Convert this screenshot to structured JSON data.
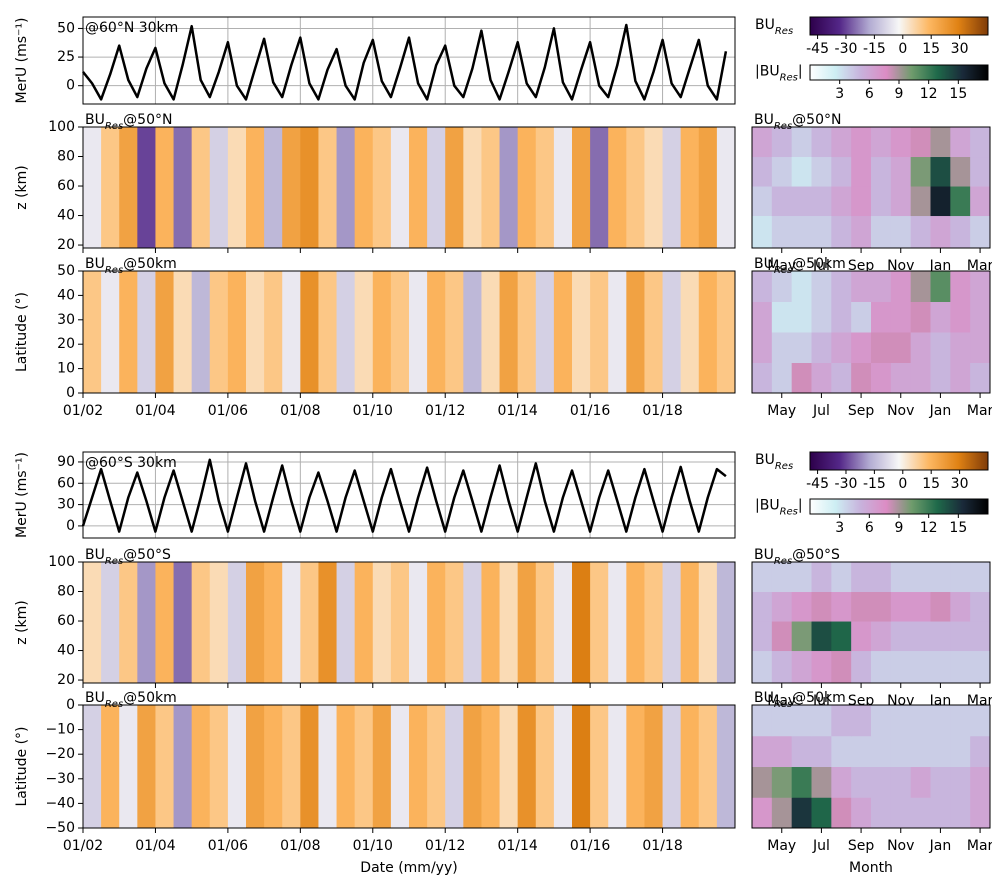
{
  "chart_data": [
    {
      "type": "line",
      "annotation": "@60°N 30km",
      "ylabel": "MerU (ms⁻¹)",
      "grid": true,
      "color": "#000000",
      "xlim": [
        2002,
        2020
      ],
      "ylim": [
        -16,
        60
      ],
      "yticks": [
        0,
        25,
        50
      ],
      "x": [
        2002,
        2002.25,
        2002.5,
        2002.75,
        2003,
        2003.25,
        2003.5,
        2003.75,
        2004,
        2004.25,
        2004.5,
        2004.75,
        2005,
        2005.25,
        2005.5,
        2005.75,
        2006,
        2006.25,
        2006.5,
        2006.75,
        2007,
        2007.25,
        2007.5,
        2007.75,
        2008,
        2008.25,
        2008.5,
        2008.75,
        2009,
        2009.25,
        2009.5,
        2009.75,
        2010,
        2010.25,
        2010.5,
        2010.75,
        2011,
        2011.25,
        2011.5,
        2011.75,
        2012,
        2012.25,
        2012.5,
        2012.75,
        2013,
        2013.25,
        2013.5,
        2013.75,
        2014,
        2014.25,
        2014.5,
        2014.75,
        2015,
        2015.25,
        2015.5,
        2015.75,
        2016,
        2016.25,
        2016.5,
        2016.75,
        2017,
        2017.25,
        2017.5,
        2017.75,
        2018,
        2018.25,
        2018.5,
        2018.75,
        2019,
        2019.25,
        2019.5,
        2019.75
      ],
      "values": [
        12,
        2,
        -12,
        10,
        35,
        5,
        -10,
        15,
        33,
        2,
        -12,
        18,
        52,
        5,
        -10,
        12,
        38,
        0,
        -12,
        15,
        41,
        3,
        -10,
        18,
        42,
        2,
        -12,
        14,
        32,
        0,
        -12,
        20,
        40,
        4,
        -10,
        15,
        42,
        2,
        -12,
        18,
        35,
        0,
        -10,
        15,
        48,
        5,
        -12,
        12,
        38,
        2,
        -10,
        16,
        50,
        3,
        -12,
        14,
        38,
        0,
        -10,
        18,
        53,
        4,
        -12,
        12,
        40,
        2,
        -10,
        15,
        40,
        0,
        -12,
        30
      ]
    },
    {
      "type": "heatmap",
      "annotation": {
        "base": "BU",
        "sub": "Res",
        "at": "@50°N"
      },
      "ylabel": "z (km)",
      "xlim": [
        2002,
        2020
      ],
      "ylim": [
        18,
        100
      ],
      "yticks": [
        20,
        40,
        60,
        80,
        100
      ],
      "xbins": [
        2002,
        2002.5,
        2003,
        2003.5,
        2004,
        2004.5,
        2005,
        2005.5,
        2006,
        2006.5,
        2007,
        2007.5,
        2008,
        2008.5,
        2009,
        2009.5,
        2010,
        2010.5,
        2011,
        2011.5,
        2012,
        2012.5,
        2013,
        2013.5,
        2014,
        2014.5,
        2015,
        2015.5,
        2016,
        2016.5,
        2017,
        2017.5,
        2018,
        2018.5,
        2019,
        2019.5,
        2020
      ],
      "values": [
        -5,
        10,
        20,
        -30,
        15,
        -25,
        10,
        -10,
        5,
        15,
        -15,
        20,
        25,
        10,
        -20,
        15,
        10,
        -5,
        15,
        -10,
        20,
        5,
        10,
        -20,
        15,
        10,
        -5,
        20,
        -25,
        15,
        10,
        5,
        -10,
        15,
        20,
        -5
      ]
    },
    {
      "type": "heatmap",
      "annotation": {
        "base": "BU",
        "sub": "Res",
        "at": "@50km"
      },
      "ylabel": "Latitude (°)",
      "xlim": [
        2002,
        2020
      ],
      "ylim": [
        0,
        50
      ],
      "yticks": [
        0,
        10,
        20,
        30,
        40,
        50
      ],
      "xticks": [
        {
          "value": 2002,
          "label": "01/02"
        },
        {
          "value": 2004,
          "label": "01/04"
        },
        {
          "value": 2006,
          "label": "01/06"
        },
        {
          "value": 2008,
          "label": "01/08"
        },
        {
          "value": 2010,
          "label": "01/10"
        },
        {
          "value": 2012,
          "label": "01/12"
        },
        {
          "value": 2014,
          "label": "01/14"
        },
        {
          "value": 2016,
          "label": "01/16"
        },
        {
          "value": 2018,
          "label": "01/18"
        }
      ],
      "xbins": [
        2002,
        2002.5,
        2003,
        2003.5,
        2004,
        2004.5,
        2005,
        2005.5,
        2006,
        2006.5,
        2007,
        2007.5,
        2008,
        2008.5,
        2009,
        2009.5,
        2010,
        2010.5,
        2011,
        2011.5,
        2012,
        2012.5,
        2013,
        2013.5,
        2014,
        2014.5,
        2015,
        2015.5,
        2016,
        2016.5,
        2017,
        2017.5,
        2018,
        2018.5,
        2019,
        2019.5,
        2020
      ],
      "values": [
        10,
        -5,
        15,
        -10,
        20,
        5,
        -15,
        10,
        15,
        5,
        10,
        -5,
        25,
        10,
        -10,
        5,
        15,
        10,
        -5,
        15,
        10,
        -15,
        5,
        20,
        10,
        -10,
        15,
        5,
        10,
        -5,
        20,
        10,
        -10,
        5,
        15,
        10
      ]
    },
    {
      "type": "heatmap",
      "annotation": {
        "base": "BU",
        "sub": "Res",
        "at": "@50°N"
      },
      "categories": [
        null,
        "May",
        null,
        "Jul",
        null,
        "Sep",
        null,
        "Nov",
        null,
        "Jan",
        null,
        "Mar"
      ],
      "ylim": [
        18,
        100
      ],
      "ybins": [
        18,
        40,
        60,
        80,
        100
      ],
      "values": [
        [
          3,
          4,
          4,
          4,
          5,
          6,
          4,
          4,
          5,
          6,
          5,
          4
        ],
        [
          4,
          5,
          5,
          5,
          6,
          7,
          5,
          6,
          9,
          16,
          12,
          6
        ],
        [
          5,
          4,
          3,
          4,
          5,
          7,
          5,
          6,
          10,
          14,
          9,
          5
        ],
        [
          6,
          5,
          4,
          5,
          6,
          7,
          6,
          7,
          8,
          9,
          6,
          5
        ]
      ]
    },
    {
      "type": "heatmap",
      "annotation": {
        "base": "BU",
        "sub": "Res",
        "at": "@50km"
      },
      "categories": [
        null,
        "May",
        null,
        "Jul",
        null,
        "Sep",
        null,
        "Nov",
        null,
        "Jan",
        null,
        "Mar"
      ],
      "ylim": [
        0,
        50
      ],
      "ybins": [
        0,
        12.5,
        25,
        37.5,
        50
      ],
      "values": [
        [
          5,
          4,
          8,
          6,
          5,
          8,
          7,
          6,
          6,
          5,
          6,
          5
        ],
        [
          6,
          4,
          4,
          5,
          6,
          7,
          8,
          8,
          6,
          5,
          6,
          6
        ],
        [
          6,
          3,
          3,
          4,
          5,
          4,
          7,
          7,
          8,
          6,
          7,
          6
        ],
        [
          5,
          4,
          3,
          4,
          5,
          6,
          6,
          7,
          9,
          11,
          7,
          6
        ]
      ]
    },
    {
      "type": "line",
      "annotation": "@60°S 30km",
      "ylabel": "MerU (ms⁻¹)",
      "grid": true,
      "color": "#000000",
      "xlim": [
        2002,
        2020
      ],
      "ylim": [
        -17,
        104
      ],
      "yticks": [
        0,
        30,
        60,
        90
      ],
      "x": [
        2002,
        2002.25,
        2002.5,
        2002.75,
        2003,
        2003.25,
        2003.5,
        2003.75,
        2004,
        2004.25,
        2004.5,
        2004.75,
        2005,
        2005.25,
        2005.5,
        2005.75,
        2006,
        2006.25,
        2006.5,
        2006.75,
        2007,
        2007.25,
        2007.5,
        2007.75,
        2008,
        2008.25,
        2008.5,
        2008.75,
        2009,
        2009.25,
        2009.5,
        2009.75,
        2010,
        2010.25,
        2010.5,
        2010.75,
        2011,
        2011.25,
        2011.5,
        2011.75,
        2012,
        2012.25,
        2012.5,
        2012.75,
        2013,
        2013.25,
        2013.5,
        2013.75,
        2014,
        2014.25,
        2014.5,
        2014.75,
        2015,
        2015.25,
        2015.5,
        2015.75,
        2016,
        2016.25,
        2016.5,
        2016.75,
        2017,
        2017.25,
        2017.5,
        2017.75,
        2018,
        2018.25,
        2018.5,
        2018.75,
        2019,
        2019.25,
        2019.5,
        2019.75
      ],
      "values": [
        0,
        40,
        80,
        35,
        -8,
        40,
        75,
        35,
        -8,
        40,
        78,
        35,
        -8,
        40,
        93,
        35,
        -8,
        40,
        88,
        35,
        -8,
        40,
        85,
        35,
        -8,
        40,
        75,
        35,
        -8,
        40,
        78,
        35,
        -8,
        40,
        80,
        35,
        -8,
        40,
        82,
        35,
        -8,
        40,
        78,
        35,
        -8,
        40,
        85,
        35,
        -8,
        40,
        88,
        35,
        -8,
        40,
        78,
        35,
        -8,
        40,
        78,
        35,
        -8,
        40,
        80,
        35,
        -8,
        40,
        83,
        35,
        -8,
        40,
        80,
        70
      ]
    },
    {
      "type": "heatmap",
      "annotation": {
        "base": "BU",
        "sub": "Res",
        "at": "@50°S"
      },
      "ylabel": "z (km)",
      "xlim": [
        2002,
        2020
      ],
      "ylim": [
        18,
        100
      ],
      "yticks": [
        20,
        40,
        60,
        80,
        100
      ],
      "xbins": [
        2002,
        2002.5,
        2003,
        2003.5,
        2004,
        2004.5,
        2005,
        2005.5,
        2006,
        2006.5,
        2007,
        2007.5,
        2008,
        2008.5,
        2009,
        2009.5,
        2010,
        2010.5,
        2011,
        2011.5,
        2012,
        2012.5,
        2013,
        2013.5,
        2014,
        2014.5,
        2015,
        2015.5,
        2016,
        2016.5,
        2017,
        2017.5,
        2018,
        2018.5,
        2019,
        2019.5,
        2020
      ],
      "values": [
        5,
        -10,
        10,
        -20,
        15,
        -25,
        10,
        5,
        -10,
        20,
        15,
        -5,
        10,
        25,
        -10,
        15,
        5,
        10,
        -5,
        15,
        10,
        -10,
        15,
        5,
        20,
        10,
        -5,
        30,
        10,
        -5,
        15,
        10,
        -10,
        15,
        5,
        -15
      ]
    },
    {
      "type": "heatmap",
      "annotation": {
        "base": "BU",
        "sub": "Res",
        "at": "@50km"
      },
      "ylabel": "Latitude (°)",
      "xlabel": "Date (mm/yy)",
      "xlim": [
        2002,
        2020
      ],
      "ylim": [
        -50,
        0
      ],
      "yticks": [
        {
          "value": -50,
          "label": "−50"
        },
        {
          "value": -40,
          "label": "−40"
        },
        {
          "value": -30,
          "label": "−30"
        },
        {
          "value": -20,
          "label": "−20"
        },
        {
          "value": -10,
          "label": "−10"
        },
        0
      ],
      "xticks": [
        {
          "value": 2002,
          "label": "01/02"
        },
        {
          "value": 2004,
          "label": "01/04"
        },
        {
          "value": 2006,
          "label": "01/06"
        },
        {
          "value": 2008,
          "label": "01/08"
        },
        {
          "value": 2010,
          "label": "01/10"
        },
        {
          "value": 2012,
          "label": "01/12"
        },
        {
          "value": 2014,
          "label": "01/14"
        },
        {
          "value": 2016,
          "label": "01/16"
        },
        {
          "value": 2018,
          "label": "01/18"
        }
      ],
      "xbins": [
        2002,
        2002.5,
        2003,
        2003.5,
        2004,
        2004.5,
        2005,
        2005.5,
        2006,
        2006.5,
        2007,
        2007.5,
        2008,
        2008.5,
        2009,
        2009.5,
        2010,
        2010.5,
        2011,
        2011.5,
        2012,
        2012.5,
        2013,
        2013.5,
        2014,
        2014.5,
        2015,
        2015.5,
        2016,
        2016.5,
        2017,
        2017.5,
        2018,
        2018.5,
        2019,
        2019.5,
        2020
      ],
      "values": [
        -10,
        15,
        -5,
        20,
        10,
        -20,
        15,
        10,
        -5,
        20,
        15,
        10,
        25,
        -5,
        15,
        10,
        20,
        -5,
        15,
        10,
        -10,
        20,
        15,
        5,
        25,
        10,
        -5,
        30,
        10,
        -5,
        15,
        20,
        -10,
        15,
        10,
        -15
      ]
    },
    {
      "type": "heatmap",
      "annotation": {
        "base": "BU",
        "sub": "Res",
        "at": "@50°S"
      },
      "categories": [
        null,
        "May",
        null,
        "Jul",
        null,
        "Sep",
        null,
        "Nov",
        null,
        "Jan",
        null,
        "Mar"
      ],
      "ylim": [
        18,
        100
      ],
      "ybins": [
        18,
        40,
        60,
        80,
        100
      ],
      "values": [
        [
          4,
          5,
          6,
          7,
          8,
          5,
          4,
          4,
          4,
          4,
          4,
          4
        ],
        [
          5,
          8,
          10,
          14,
          13,
          7,
          6,
          5,
          5,
          5,
          5,
          5
        ],
        [
          5,
          6,
          7,
          8,
          7,
          8,
          8,
          7,
          7,
          8,
          6,
          5
        ],
        [
          4,
          4,
          4,
          5,
          4,
          5,
          5,
          4,
          4,
          4,
          4,
          4
        ]
      ]
    },
    {
      "type": "heatmap",
      "annotation": {
        "base": "BU",
        "sub": "Res",
        "at": "@50km"
      },
      "xlabel": "Month",
      "categories": [
        null,
        "May",
        null,
        "Jul",
        null,
        "Sep",
        null,
        "Nov",
        null,
        "Jan",
        null,
        "Mar"
      ],
      "ylim": [
        -50,
        0
      ],
      "ybins": [
        -50,
        -37.5,
        -25,
        -12.5,
        0
      ],
      "values": [
        [
          7,
          9,
          15,
          13,
          8,
          6,
          5,
          5,
          5,
          5,
          5,
          6
        ],
        [
          9,
          10,
          12,
          9,
          6,
          5,
          5,
          5,
          6,
          5,
          5,
          6
        ],
        [
          6,
          6,
          5,
          5,
          4,
          4,
          4,
          4,
          4,
          4,
          4,
          5
        ],
        [
          4,
          4,
          4,
          4,
          5,
          5,
          4,
          4,
          4,
          4,
          4,
          4
        ]
      ]
    }
  ],
  "colorbars": [
    {
      "label": {
        "base": "BU",
        "sub": "Res"
      },
      "lim": [
        -49,
        45
      ],
      "colors": [
        "#2d004b",
        "#542788",
        "#b2abd2",
        "#f7f7f7",
        "#fdb863",
        "#e08214",
        "#7f3b08"
      ],
      "ticks": [
        {
          "value": -45,
          "label": "-45"
        },
        {
          "value": -30,
          "label": "-30"
        },
        {
          "value": -15,
          "label": "-15"
        },
        0,
        15,
        30
      ]
    },
    {
      "label": {
        "base": "|BU",
        "sub": "Res",
        "end": "|"
      },
      "lim": [
        0,
        18
      ],
      "colors": [
        "#ffffff",
        "#cdeef3",
        "#c8b2dc",
        "#dc8cc4",
        "#6f9c6c",
        "#1f6a4a",
        "#1a2a3a",
        "#000000"
      ],
      "ticks": [
        3,
        6,
        9,
        12,
        15
      ]
    },
    {
      "label": {
        "base": "BU",
        "sub": "Res"
      },
      "lim": [
        -49,
        45
      ],
      "colors": [
        "#2d004b",
        "#542788",
        "#b2abd2",
        "#f7f7f7",
        "#fdb863",
        "#e08214",
        "#7f3b08"
      ],
      "ticks": [
        {
          "value": -45,
          "label": "-45"
        },
        {
          "value": -30,
          "label": "-30"
        },
        {
          "value": -15,
          "label": "-15"
        },
        0,
        15,
        30
      ]
    },
    {
      "label": {
        "base": "|BU",
        "sub": "Res",
        "end": "|"
      },
      "lim": [
        0,
        18
      ],
      "colors": [
        "#ffffff",
        "#cdeef3",
        "#c8b2dc",
        "#dc8cc4",
        "#6f9c6c",
        "#1f6a4a",
        "#1a2a3a",
        "#000000"
      ],
      "ticks": [
        3,
        6,
        9,
        12,
        15
      ]
    }
  ]
}
